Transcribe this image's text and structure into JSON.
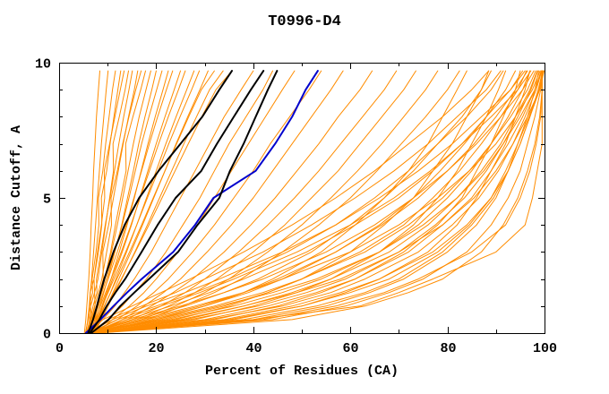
{
  "chart_data": {
    "type": "line",
    "title": "T0996-D4",
    "xlabel": "Percent of Residues (CA)",
    "ylabel": "Distance Cutoff, A",
    "xlim": [
      0,
      100
    ],
    "ylim": [
      0,
      10
    ],
    "xticks_major": [
      0,
      20,
      40,
      60,
      80,
      100
    ],
    "xticks_minor": [
      10,
      30,
      50,
      70,
      90
    ],
    "yticks_major": [
      0,
      5,
      10
    ],
    "yticks_minor": [
      1,
      2,
      3,
      4,
      6,
      7,
      8,
      9
    ],
    "grid": false,
    "legend": null,
    "background": "#FFFFFF",
    "colors": {
      "server_models": "#FF8C00",
      "reference_black": "#000000",
      "highlight_blue": "#0000CD",
      "frame": "#000000"
    },
    "cutoffs": [
      0,
      0.5,
      1,
      1.5,
      2,
      3,
      4,
      5,
      6,
      7,
      8,
      9,
      9.7
    ],
    "reference_series": [
      {
        "name": "highlighted-model-blue",
        "color": "#0000CD",
        "width": 2,
        "x": [
          5.5,
          8.5,
          11.2,
          14.0,
          17.0,
          23.5,
          28.0,
          31.8,
          40.5,
          44.5,
          48.0,
          50.8,
          53.3
        ]
      },
      {
        "name": "reference-model-black-1",
        "color": "#000000",
        "width": 2,
        "x": [
          6.0,
          7.0,
          7.8,
          8.5,
          9.3,
          11.2,
          13.5,
          16.5,
          20.5,
          25.0,
          29.5,
          33.0,
          35.6
        ]
      },
      {
        "name": "reference-model-black-2",
        "color": "#000000",
        "width": 2,
        "x": [
          6.3,
          8.3,
          9.8,
          11.6,
          13.6,
          17.0,
          20.3,
          24.0,
          29.3,
          32.5,
          36.0,
          39.5,
          42.1
        ]
      },
      {
        "name": "reference-model-black-3",
        "color": "#000000",
        "width": 2,
        "x": [
          6.6,
          10.2,
          12.6,
          15.5,
          18.5,
          24.5,
          28.5,
          33.0,
          35.2,
          38.0,
          40.5,
          43.0,
          44.9
        ]
      }
    ],
    "model_series_x": [
      [
        5.2,
        5.5,
        5.7,
        5.9,
        6.1,
        6.4,
        6.6,
        6.9,
        7.1,
        7.4,
        7.7,
        8.1,
        8.4
      ],
      [
        5.5,
        5.9,
        6.2,
        6.4,
        6.7,
        7.1,
        7.5,
        7.9,
        8.3,
        8.7,
        9.2,
        9.7,
        10.1
      ],
      [
        5.8,
        6.3,
        6.2,
        6.9,
        6.8,
        7.6,
        8.2,
        8.1,
        9.0,
        9.6,
        10.3,
        11.0,
        11.6
      ],
      [
        6.0,
        6.6,
        6.5,
        7.3,
        7.2,
        8.1,
        8.8,
        8.7,
        9.8,
        10.5,
        11.3,
        12.1,
        12.7
      ],
      [
        5.4,
        6.0,
        6.5,
        6.4,
        7.2,
        7.9,
        8.7,
        9.4,
        9.3,
        10.4,
        11.5,
        12.6,
        13.4
      ],
      [
        6.2,
        6.8,
        7.4,
        7.3,
        8.0,
        8.8,
        9.6,
        10.4,
        11.2,
        11.1,
        12.4,
        13.6,
        14.3
      ],
      [
        5.6,
        6.4,
        7.0,
        7.8,
        7.7,
        8.6,
        9.5,
        10.5,
        11.4,
        12.3,
        13.3,
        14.4,
        15.1
      ],
      [
        6.4,
        7.0,
        7.7,
        8.4,
        9.1,
        9.0,
        10.2,
        11.2,
        12.2,
        13.2,
        14.3,
        15.5,
        16.2
      ],
      [
        5.8,
        6.6,
        7.3,
        8.1,
        8.8,
        9.8,
        10.8,
        10.7,
        12.0,
        13.1,
        14.4,
        15.8,
        16.9
      ],
      [
        6.6,
        7.3,
        8.0,
        8.7,
        9.4,
        10.6,
        11.6,
        12.7,
        13.8,
        13.7,
        15.2,
        16.8,
        17.8
      ],
      [
        6.0,
        6.9,
        7.7,
        8.5,
        9.3,
        10.8,
        12.0,
        13.1,
        14.2,
        15.3,
        16.5,
        17.9,
        18.9
      ],
      [
        6.8,
        7.6,
        8.4,
        9.2,
        10.0,
        11.5,
        12.9,
        14.1,
        15.3,
        16.4,
        17.7,
        19.1,
        20.0
      ],
      [
        5.9,
        6.8,
        7.8,
        8.8,
        9.7,
        11.4,
        13.0,
        14.4,
        15.7,
        17.0,
        18.5,
        20.1,
        21.2
      ],
      [
        6.9,
        7.8,
        8.8,
        9.8,
        10.7,
        12.4,
        14.0,
        15.5,
        16.9,
        18.3,
        19.8,
        21.4,
        22.5
      ],
      [
        6.1,
        7.1,
        8.1,
        9.1,
        10.1,
        12.0,
        13.8,
        15.4,
        17.0,
        18.6,
        20.3,
        22.1,
        23.4
      ],
      [
        7.0,
        8.0,
        9.0,
        10.0,
        11.0,
        13.0,
        14.9,
        16.6,
        18.3,
        20.0,
        21.8,
        23.7,
        25.0
      ],
      [
        6.3,
        7.4,
        8.5,
        9.6,
        10.7,
        12.8,
        14.8,
        16.7,
        18.6,
        20.5,
        22.5,
        24.6,
        26.0
      ],
      [
        7.1,
        8.2,
        9.4,
        10.6,
        11.7,
        13.9,
        16.0,
        18.0,
        20.0,
        22.0,
        24.1,
        26.3,
        27.8
      ],
      [
        6.5,
        7.7,
        8.9,
        10.1,
        11.3,
        13.7,
        16.0,
        18.2,
        20.4,
        22.6,
        24.9,
        27.3,
        28.9
      ],
      [
        7.2,
        8.5,
        9.8,
        11.1,
        12.3,
        14.8,
        17.2,
        19.5,
        21.8,
        24.1,
        26.5,
        29.0,
        30.7
      ],
      [
        6.7,
        8.0,
        9.3,
        10.6,
        11.9,
        14.5,
        17.0,
        19.4,
        21.8,
        24.2,
        26.7,
        29.3,
        32.0
      ],
      [
        7.3,
        8.7,
        10.1,
        11.5,
        12.9,
        15.6,
        18.2,
        20.7,
        23.2,
        25.7,
        28.3,
        31.0,
        33.8
      ],
      [
        6.8,
        8.3,
        9.8,
        11.3,
        12.8,
        15.7,
        18.5,
        21.2,
        23.9,
        26.6,
        29.4,
        32.3,
        35.6
      ],
      [
        6.0,
        9.0,
        11.5,
        13.5,
        15.5,
        19.0,
        22.0,
        25.0,
        28.0,
        31.0,
        34.0,
        37.5,
        40.0
      ],
      [
        6.5,
        10.0,
        13.0,
        15.5,
        18.0,
        22.0,
        25.5,
        29.0,
        32.0,
        35.0,
        38.5,
        42.0,
        44.0
      ],
      [
        5.8,
        11.0,
        14.5,
        17.5,
        20.0,
        24.5,
        28.5,
        32.0,
        35.5,
        39.0,
        42.5,
        46.0,
        48.5
      ],
      [
        6.2,
        12.0,
        16.0,
        19.5,
        22.5,
        27.5,
        32.0,
        36.0,
        40.0,
        43.5,
        47.5,
        51.5,
        54.0
      ],
      [
        6.8,
        13.0,
        17.5,
        21.5,
        25.0,
        30.5,
        35.5,
        40.0,
        44.0,
        48.0,
        52.0,
        56.0,
        58.5
      ],
      [
        6.1,
        14.0,
        19.0,
        23.5,
        27.5,
        34.0,
        39.5,
        44.5,
        49.0,
        53.5,
        57.5,
        62.0,
        64.5
      ],
      [
        6.9,
        15.0,
        21.0,
        26.0,
        30.0,
        37.0,
        43.0,
        48.5,
        53.5,
        58.0,
        62.5,
        67.0,
        69.5
      ],
      [
        6.3,
        16.0,
        22.5,
        28.0,
        32.5,
        40.0,
        46.5,
        52.0,
        57.5,
        62.0,
        66.5,
        71.0,
        73.5
      ],
      [
        7.0,
        17.0,
        24.0,
        30.0,
        35.0,
        43.0,
        50.0,
        56.0,
        61.5,
        66.5,
        71.0,
        75.5,
        78.0
      ],
      [
        6.4,
        18.0,
        25.5,
        32.0,
        37.5,
        46.0,
        53.5,
        60.0,
        65.5,
        70.5,
        75.5,
        80.0,
        82.5
      ],
      [
        6.0,
        20,
        30,
        38,
        44,
        54,
        61,
        67,
        72,
        76,
        79,
        82,
        84
      ],
      [
        7.0,
        24,
        35,
        43,
        50,
        60,
        67,
        73,
        77,
        81,
        84,
        87,
        88.5
      ],
      [
        6.5,
        28,
        40,
        49,
        56,
        66,
        73,
        78,
        82,
        85,
        88,
        90.5,
        92
      ],
      [
        7.5,
        32,
        45,
        54,
        61,
        71,
        78,
        83,
        86,
        89,
        91.5,
        94,
        95
      ],
      [
        6.2,
        36,
        50,
        59,
        66,
        76,
        82,
        86,
        89,
        92,
        94,
        96,
        97
      ],
      [
        7.2,
        40,
        55,
        64,
        71,
        80,
        86,
        90,
        92.5,
        94.5,
        96.5,
        98,
        98.8
      ],
      [
        6.6,
        44,
        59,
        68,
        75,
        84,
        89,
        92.5,
        95,
        96.5,
        98,
        99.2,
        99.8
      ],
      [
        8.0,
        48,
        63,
        72,
        79,
        87,
        91.5,
        94.5,
        96.5,
        98,
        99,
        99.5,
        99.5
      ],
      [
        6.4,
        16,
        26,
        34,
        41,
        52,
        60,
        67,
        73,
        78,
        83,
        87,
        89
      ],
      [
        7.4,
        19,
        30,
        39,
        46,
        57,
        66,
        73,
        78.5,
        83.5,
        88,
        92,
        94
      ],
      [
        6.1,
        22,
        34,
        43,
        50,
        62,
        71,
        77,
        82.5,
        87,
        91,
        94.5,
        96.3
      ],
      [
        7.6,
        26,
        38,
        48,
        56,
        68,
        76,
        82,
        87,
        91,
        94,
        97,
        98.5
      ],
      [
        6.3,
        30,
        43,
        53,
        61,
        72,
        79,
        85,
        89,
        92.5,
        95.5,
        98,
        99.3
      ],
      [
        7.8,
        34,
        48,
        58,
        66,
        77,
        84,
        89,
        92.5,
        95,
        97,
        99,
        99.9
      ],
      [
        6.7,
        12,
        20,
        28,
        35,
        47,
        57,
        65,
        72,
        78,
        84,
        89,
        91.5
      ],
      [
        7.1,
        14,
        23,
        31,
        38,
        51,
        61,
        70,
        77,
        83,
        88,
        93,
        95.5
      ],
      [
        6.9,
        10,
        17,
        24,
        30,
        42,
        52,
        61,
        69,
        76,
        82,
        88,
        91
      ],
      [
        7.7,
        11,
        18,
        26,
        33,
        46,
        57,
        66,
        74,
        81,
        87,
        93,
        96
      ],
      [
        6.0,
        9,
        15,
        21,
        27,
        38,
        48,
        57,
        65,
        72,
        79,
        85,
        88.5
      ],
      [
        7.3,
        13,
        21,
        29,
        36,
        49,
        60,
        69,
        76.5,
        83,
        89,
        94.5,
        97.2
      ],
      [
        6.8,
        15,
        25,
        34,
        42,
        55,
        65,
        73,
        80,
        86,
        91,
        95.5,
        97.8
      ],
      [
        7.9,
        17,
        28,
        38,
        46,
        60,
        70,
        78,
        84.5,
        90,
        94,
        97.5,
        99.1
      ],
      [
        6.2,
        21,
        33,
        44,
        53,
        66,
        75,
        82,
        87.5,
        91.5,
        95,
        98,
        99.5
      ],
      [
        7.0,
        25,
        38,
        49,
        58,
        70,
        79,
        85.5,
        90,
        93.5,
        96.5,
        99,
        99.5
      ],
      [
        6.5,
        38,
        53,
        63,
        70,
        79,
        85,
        89.5,
        92.5,
        95,
        97,
        98.7,
        99.6
      ],
      [
        7.2,
        42,
        57,
        67,
        74,
        85,
        92,
        95,
        97,
        98.3,
        99.2,
        99.5,
        99.5
      ],
      [
        8.0,
        40,
        62,
        70,
        77,
        90,
        96,
        97.5,
        98.5,
        99.5,
        99.5,
        99.5,
        99.5
      ],
      [
        6.1,
        23,
        36,
        46,
        54,
        66,
        74,
        80,
        85,
        89,
        92.5,
        95.5,
        97
      ],
      [
        7.5,
        27,
        41,
        51,
        59,
        70,
        77.5,
        83.5,
        88,
        91.5,
        94.5,
        97.2,
        98.6
      ],
      [
        6.9,
        31,
        46,
        56,
        63,
        74,
        81,
        86.5,
        90.5,
        93.5,
        96,
        98.3,
        99.4
      ],
      [
        7.7,
        35,
        50,
        60,
        68,
        78,
        84.5,
        89,
        92,
        94.5,
        96.8,
        98.8,
        99.7
      ],
      [
        6.3,
        18,
        29,
        38,
        45,
        57,
        66.5,
        74,
        80,
        85.5,
        90,
        94,
        96.5
      ],
      [
        7.1,
        20,
        32,
        42,
        50,
        63,
        72,
        79,
        84.5,
        89,
        93,
        96.5,
        98.2
      ]
    ]
  }
}
